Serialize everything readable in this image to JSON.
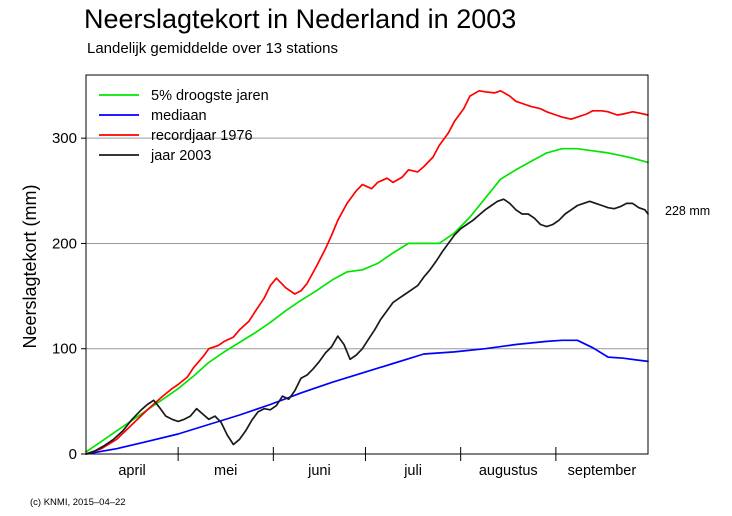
{
  "chart_data": {
    "type": "line",
    "title": "Neerslagtekort in Nederland in 2003",
    "subtitle": "Landelijk gemiddelde over 13 stations",
    "xlabel": "",
    "ylabel": "Neerslagtekort (mm)",
    "ylim": [
      0,
      360
    ],
    "xlim": [
      0,
      183
    ],
    "y_ticks": [
      0,
      100,
      200,
      300
    ],
    "month_labels": [
      {
        "label": "april",
        "center": 15
      },
      {
        "label": "mei",
        "center": 45.5
      },
      {
        "label": "juni",
        "center": 76
      },
      {
        "label": "juli",
        "center": 106.5
      },
      {
        "label": "augustus",
        "center": 137.5
      },
      {
        "label": "september",
        "center": 168
      }
    ],
    "month_boundaries": [
      30,
      61,
      91,
      122,
      153
    ],
    "x_unit": "days since 1 April",
    "grid": "horizontal",
    "legend_position": "top-left",
    "annotation": "228 mm",
    "credit": "(c) KNMI, 2015–04–22",
    "series": [
      {
        "name": "5% droogste jaren",
        "color": "#00e600",
        "x": [
          0,
          5,
          10,
          15,
          20,
          25,
          30,
          35,
          40,
          45,
          50,
          55,
          60,
          65,
          70,
          75,
          80,
          85,
          90,
          95,
          100,
          105,
          110,
          115,
          120,
          125,
          130,
          135,
          140,
          145,
          150,
          155,
          160,
          165,
          170,
          175,
          178,
          183
        ],
        "values": [
          2,
          12,
          22,
          32,
          42,
          52,
          62,
          74,
          87,
          97,
          106,
          115,
          125,
          136,
          146,
          155,
          165,
          173,
          175,
          181,
          191,
          200,
          200,
          200,
          210,
          225,
          243,
          261,
          270,
          278,
          286,
          290,
          290,
          288,
          286,
          283,
          281,
          277
        ]
      },
      {
        "name": "mediaan",
        "color": "#0000ff",
        "x": [
          0,
          10,
          20,
          30,
          40,
          50,
          60,
          70,
          80,
          90,
          100,
          110,
          120,
          130,
          140,
          150,
          155,
          160,
          165,
          170,
          175,
          183
        ],
        "values": [
          0,
          5,
          12,
          19,
          28,
          37,
          47,
          58,
          68,
          77,
          86,
          95,
          97,
          100,
          104,
          107,
          108,
          108,
          101,
          92,
          91,
          88
        ]
      },
      {
        "name": "recordjaar 1976",
        "color": "#ff0000",
        "x": [
          0,
          5,
          10,
          15,
          20,
          25,
          28,
          30,
          33,
          35,
          38,
          40,
          43,
          45,
          48,
          50,
          53,
          55,
          58,
          60,
          62,
          65,
          68,
          70,
          72,
          75,
          78,
          80,
          82,
          85,
          88,
          90,
          93,
          95,
          98,
          100,
          103,
          105,
          108,
          110,
          113,
          115,
          118,
          120,
          123,
          125,
          128,
          130,
          133,
          135,
          138,
          140,
          143,
          145,
          148,
          150,
          153,
          155,
          158,
          160,
          163,
          165,
          168,
          170,
          173,
          175,
          178,
          180,
          183
        ],
        "values": [
          0,
          5,
          14,
          28,
          42,
          55,
          62,
          66,
          73,
          82,
          92,
          100,
          103,
          107,
          111,
          118,
          126,
          135,
          148,
          160,
          167,
          158,
          152,
          155,
          162,
          178,
          195,
          208,
          222,
          238,
          250,
          256,
          252,
          258,
          262,
          258,
          263,
          270,
          268,
          273,
          282,
          293,
          305,
          316,
          328,
          340,
          345,
          344,
          343,
          345,
          340,
          335,
          332,
          330,
          328,
          325,
          322,
          320,
          318,
          320,
          323,
          326,
          326,
          325,
          322,
          323,
          325,
          324,
          322
        ]
      },
      {
        "name": "jaar 2003",
        "color": "#1a1a1a",
        "x": [
          0,
          3,
          6,
          9,
          12,
          15,
          18,
          20,
          22,
          24,
          26,
          28,
          30,
          32,
          34,
          36,
          38,
          40,
          42,
          44,
          46,
          48,
          50,
          52,
          54,
          56,
          58,
          60,
          62,
          64,
          66,
          68,
          70,
          72,
          74,
          76,
          78,
          80,
          82,
          84,
          86,
          88,
          90,
          92,
          94,
          96,
          98,
          100,
          102,
          104,
          106,
          108,
          110,
          112,
          114,
          116,
          118,
          120,
          122,
          124,
          126,
          128,
          130,
          132,
          134,
          136,
          138,
          140,
          142,
          144,
          146,
          148,
          150,
          152,
          154,
          156,
          158,
          160,
          162,
          164,
          166,
          168,
          170,
          172,
          174,
          176,
          178,
          180,
          182,
          183
        ],
        "values": [
          0,
          3,
          8,
          14,
          22,
          33,
          42,
          47,
          51,
          44,
          36,
          33,
          31,
          33,
          36,
          43,
          38,
          33,
          36,
          30,
          18,
          9,
          14,
          22,
          32,
          40,
          43,
          42,
          46,
          55,
          52,
          60,
          72,
          75,
          81,
          88,
          96,
          102,
          112,
          104,
          90,
          94,
          100,
          109,
          118,
          128,
          136,
          144,
          148,
          152,
          156,
          160,
          168,
          175,
          183,
          192,
          200,
          208,
          214,
          218,
          222,
          227,
          232,
          236,
          240,
          242,
          238,
          232,
          228,
          228,
          224,
          218,
          216,
          218,
          222,
          228,
          232,
          236,
          238,
          240,
          238,
          236,
          234,
          233,
          235,
          238,
          238,
          234,
          232,
          228
        ]
      }
    ]
  }
}
